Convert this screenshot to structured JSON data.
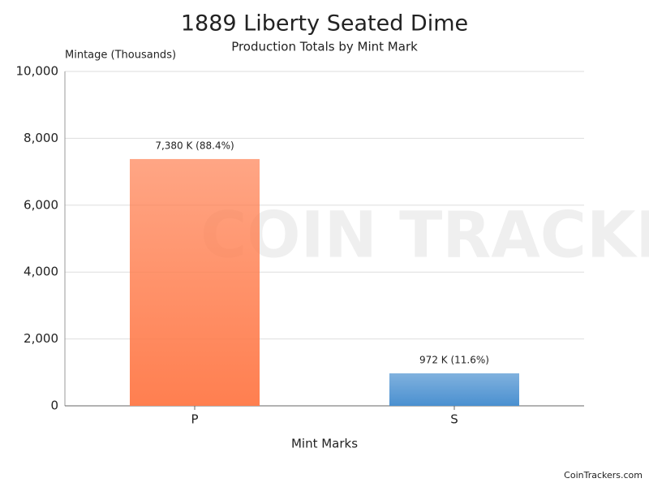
{
  "chart_data": {
    "type": "bar",
    "title": "1889 Liberty Seated Dime",
    "subtitle": "Production Totals by Mint Mark",
    "y_label": "Mintage (Thousands)",
    "x_label": "Mint Marks",
    "watermark": "COIN TRACKERS",
    "credit": "CoinTrackers.com",
    "categories": [
      "P",
      "S"
    ],
    "values": [
      7380,
      972
    ],
    "value_labels": [
      "7,380 K (88.4%)",
      "972 K (11.6%)"
    ],
    "colors": [
      "#ff7f50",
      "#4a90d0"
    ],
    "ylim": [
      0,
      10000
    ],
    "yticks": [
      0,
      {
        "value": 2000,
        "label": "2,000"
      },
      {
        "value": 4000,
        "label": "4,000"
      },
      {
        "value": 6000,
        "label": "6,000"
      },
      {
        "value": 8000,
        "label": "8,000"
      },
      {
        "value": 10000,
        "label": "10,000"
      }
    ],
    "grid": true
  }
}
